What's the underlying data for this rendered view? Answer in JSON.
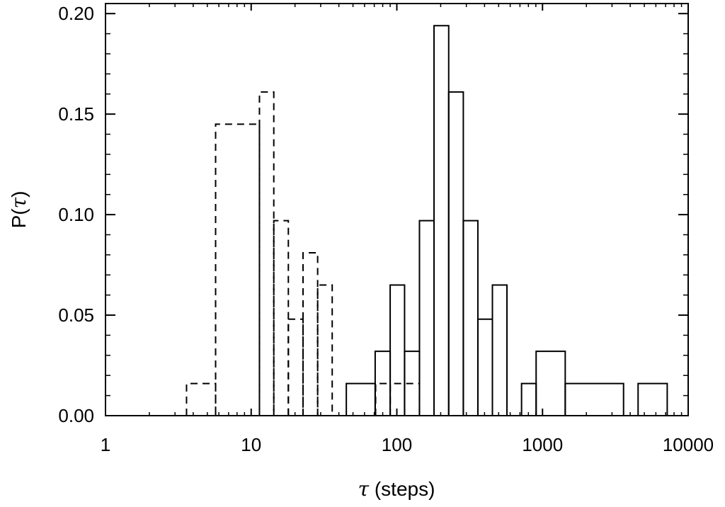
{
  "chart_data": {
    "type": "histogram",
    "x_scale": "log",
    "xlim": [
      1,
      10000
    ],
    "ylim": [
      0,
      0.205
    ],
    "x_ticks": [
      {
        "value": 1,
        "label": "1"
      },
      {
        "value": 10,
        "label": "10"
      },
      {
        "value": 100,
        "label": "100"
      },
      {
        "value": 1000,
        "label": "1000"
      },
      {
        "value": 10000,
        "label": "10000"
      }
    ],
    "y_ticks": [
      {
        "value": 0,
        "label": "0.00"
      },
      {
        "value": 0.05,
        "label": "0.05"
      },
      {
        "value": 0.1,
        "label": "0.10"
      },
      {
        "value": 0.15,
        "label": "0.15"
      },
      {
        "value": 0.2,
        "label": "0.20"
      }
    ],
    "xlabel": {
      "symbol": "τ",
      "text": " (steps)"
    },
    "ylabel": {
      "text": "P(",
      "symbol": "τ",
      "end": ")"
    },
    "series": [
      {
        "line_style": "dashed",
        "color": "#000000",
        "bins": [
          {
            "x0": 3.6,
            "x1": 5.7,
            "y": 0.016
          },
          {
            "x0": 5.7,
            "x1": 11.4,
            "y": 0.145
          },
          {
            "x0": 11.4,
            "x1": 14.3,
            "y": 0.161
          },
          {
            "x0": 14.3,
            "x1": 18.0,
            "y": 0.097
          },
          {
            "x0": 18.0,
            "x1": 22.7,
            "y": 0.048
          },
          {
            "x0": 22.7,
            "x1": 28.6,
            "y": 0.081
          },
          {
            "x0": 28.6,
            "x1": 36.0,
            "y": 0.065
          },
          {
            "x0": 36.0,
            "x1": 71.5,
            "y": 0.016,
            "hidden": true
          },
          {
            "x0": 71.5,
            "x1": 90.0,
            "y": 0.016
          },
          {
            "x0": 90.0,
            "x1": 143.0,
            "y": 0.016
          }
        ]
      },
      {
        "line_style": "solid",
        "color": "#000000",
        "bins": [
          {
            "x0": 45.0,
            "x1": 71.0,
            "y": 0.016
          },
          {
            "x0": 71.0,
            "x1": 90.0,
            "y": 0.032
          },
          {
            "x0": 90.0,
            "x1": 113.0,
            "y": 0.065
          },
          {
            "x0": 113.0,
            "x1": 143.0,
            "y": 0.032
          },
          {
            "x0": 143.0,
            "x1": 180.0,
            "y": 0.097
          },
          {
            "x0": 180.0,
            "x1": 227.0,
            "y": 0.194
          },
          {
            "x0": 227.0,
            "x1": 286.0,
            "y": 0.161
          },
          {
            "x0": 286.0,
            "x1": 360.0,
            "y": 0.097
          },
          {
            "x0": 360.0,
            "x1": 453.0,
            "y": 0.048
          },
          {
            "x0": 453.0,
            "x1": 570.0,
            "y": 0.065
          },
          {
            "x0": 570.0,
            "x1": 718.0,
            "y": 0.0
          },
          {
            "x0": 718.0,
            "x1": 904.0,
            "y": 0.016
          },
          {
            "x0": 904.0,
            "x1": 1432.0,
            "y": 0.032
          },
          {
            "x0": 1432.0,
            "x1": 3600.0,
            "y": 0.016
          },
          {
            "x0": 3600.0,
            "x1": 4530.0,
            "y": 0.0
          },
          {
            "x0": 4530.0,
            "x1": 7180.0,
            "y": 0.016
          }
        ]
      }
    ]
  }
}
